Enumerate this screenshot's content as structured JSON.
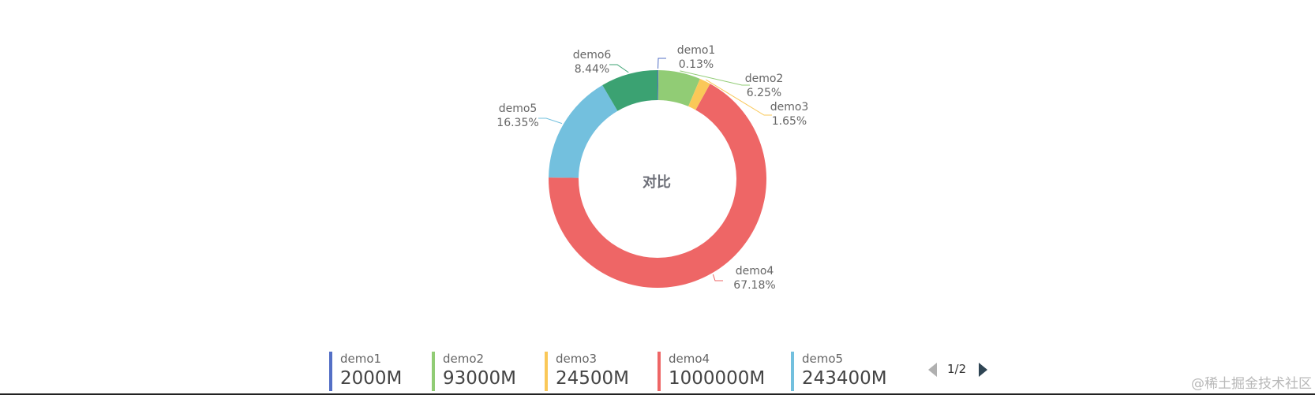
{
  "chart_data": {
    "type": "pie",
    "title": "对比",
    "series": [
      {
        "name": "demo1",
        "value": 2000,
        "value_label": "2000M",
        "percent_label": "0.13%",
        "color": "#5470c6"
      },
      {
        "name": "demo2",
        "value": 93000,
        "value_label": "93000M",
        "percent_label": "6.25%",
        "color": "#91cc75"
      },
      {
        "name": "demo3",
        "value": 24500,
        "value_label": "24500M",
        "percent_label": "1.65%",
        "color": "#fac858"
      },
      {
        "name": "demo4",
        "value": 1000000,
        "value_label": "1000000M",
        "percent_label": "67.18%",
        "color": "#ee6666"
      },
      {
        "name": "demo5",
        "value": 243400,
        "value_label": "243400M",
        "percent_label": "16.35%",
        "color": "#73c0de"
      },
      {
        "name": "demo6",
        "value": 125600,
        "value_label": "",
        "percent_label": "8.44%",
        "color": "#3ba272"
      }
    ],
    "legend_position": "bottom",
    "legend_page": "1/2"
  },
  "watermark": "@稀土掘金技术社区"
}
